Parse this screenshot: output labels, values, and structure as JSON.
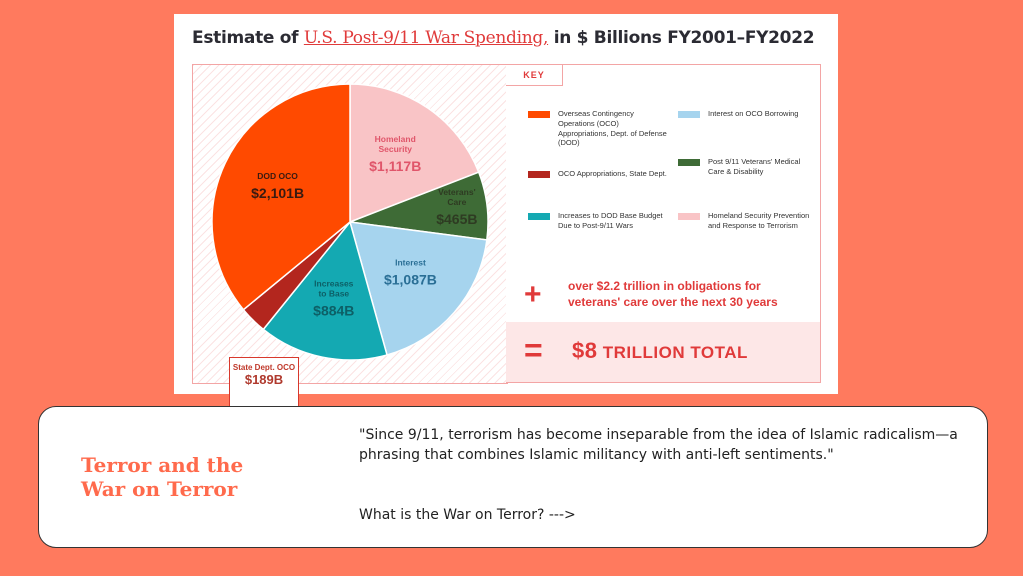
{
  "chart_data": {
    "type": "pie",
    "title": {
      "prefix": "Estimate of ",
      "highlight": "U.S. Post-9/11 War Spending,",
      "suffix": " in $ Billions FY2001–FY2022"
    },
    "slices": [
      {
        "key": "homeland",
        "label": "Homeland Security",
        "display": "$1,117B",
        "value": 1117,
        "color": "#f9c4c6",
        "label_color": "#e0556a"
      },
      {
        "key": "veterans",
        "label": "Veterans' Care",
        "display": "$465B",
        "value": 465,
        "color": "#3e6b36",
        "label_color": "#2e3b22"
      },
      {
        "key": "interest",
        "label": "Interest",
        "display": "$1,087B",
        "value": 1087,
        "color": "#a6d4ee",
        "label_color": "#2a6f96"
      },
      {
        "key": "base",
        "label": "Increases to Base",
        "display": "$884B",
        "value": 884,
        "color": "#14a9b2",
        "label_color": "#0d5f66"
      },
      {
        "key": "state",
        "label": "State Dept. OCO",
        "display": "$189B",
        "value": 189,
        "color": "#b3261e",
        "label_color": "#b03a2e"
      },
      {
        "key": "dod",
        "label": "DOD OCO",
        "display": "$2,101B",
        "value": 2101,
        "color": "#ff4a00",
        "label_color": "#3a1a10"
      }
    ],
    "key_heading": "KEY",
    "legend": [
      {
        "label": "Overseas Contingency Operations (OCO) Appropriations, Dept. of Defense (DOD)",
        "color": "#ff4a00"
      },
      {
        "label": "OCO Appropriations, State Dept.",
        "color": "#b3261e"
      },
      {
        "label": "Increases to DOD Base Budget Due to Post-9/11 Wars",
        "color": "#14a9b2"
      },
      {
        "label": "Interest on OCO Borrowing",
        "color": "#a6d4ee"
      },
      {
        "label": "Post 9/11 Veterans' Medical Care & Disability",
        "color": "#3e6b36"
      },
      {
        "label": "Homeland Security Prevention and Response to Terrorism",
        "color": "#f9c4c6"
      }
    ],
    "plus_sign": "+",
    "plus_note": "over $2.2 trillion in obligations for veterans' care over the next 30 years",
    "equals_sign": "=",
    "total_amount": "$8",
    "total_label": "TRILLION TOTAL"
  },
  "banner": {
    "title": "Terror and the War on Terror",
    "quote": "\"Since 9/11, terrorism has become inseparable from the idea of Islamic radicalism—a phrasing that combines Islamic militancy with anti-left sentiments.\"",
    "link": "What is the War on Terror? --->"
  },
  "colors": {
    "background": "#ff7a5e",
    "accent_red": "#e03a3a",
    "banner_title": "#ff6a4c"
  }
}
